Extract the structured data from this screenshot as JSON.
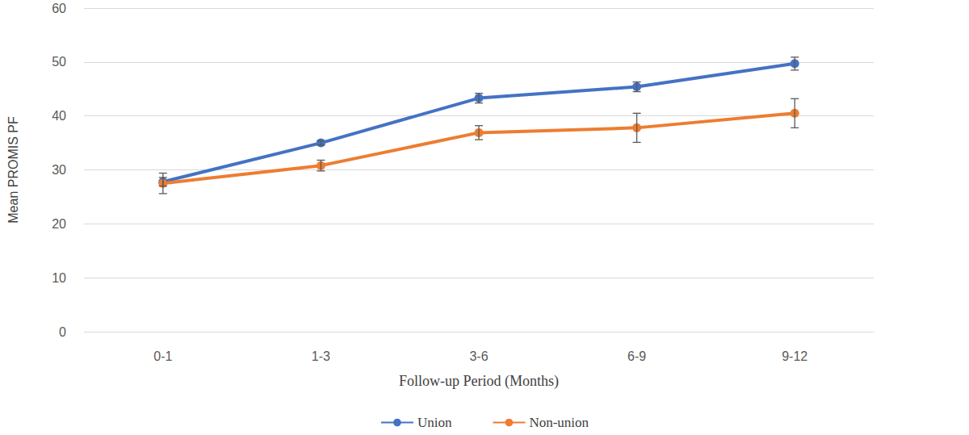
{
  "chart_data": {
    "type": "line",
    "x_label": "Follow-up Period (Months)",
    "y_label": "Mean PROMIS PF",
    "categories": [
      "0-1",
      "1-3",
      "3-6",
      "6-9",
      "9-12"
    ],
    "series": [
      {
        "name": "Union",
        "color": "#4472c4",
        "values": [
          27.8,
          35.0,
          43.3,
          45.4,
          49.7
        ],
        "errors": [
          0.8,
          0.4,
          0.9,
          0.9,
          1.2
        ]
      },
      {
        "name": "Non-union",
        "color": "#ed7d31",
        "values": [
          27.5,
          30.8,
          36.9,
          37.8,
          40.5
        ],
        "errors": [
          1.9,
          1.0,
          1.3,
          2.7,
          2.7
        ]
      }
    ],
    "ylim": [
      0,
      60
    ],
    "yticks": [
      0,
      10,
      20,
      30,
      40,
      50,
      60
    ],
    "grid": true,
    "legend": "bottom",
    "marker": "circle"
  }
}
